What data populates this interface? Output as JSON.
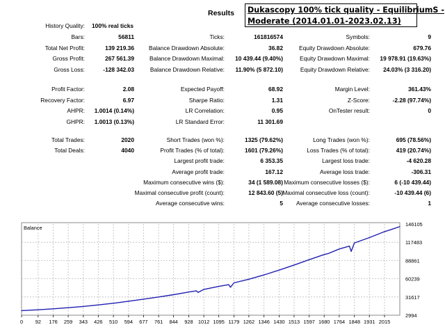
{
  "report": {
    "heading": "Results",
    "banner_line1": "Dukascopy 100% tick quality - EquilibriumS -",
    "banner_line2": "Moderate (2014.01.01-2023.02.13)"
  },
  "block1": [
    {
      "col1": {
        "label": "History Quality:",
        "value": "100% real ticks"
      }
    },
    {
      "col1": {
        "label": "Bars:",
        "value": "56811"
      },
      "col2": {
        "label": "Ticks:",
        "value": "161816574"
      },
      "col3": {
        "label": "Symbols:",
        "value": "9"
      }
    },
    {
      "col1": {
        "label": "Total Net Profit:",
        "value": "139 219.36"
      },
      "col2": {
        "label": "Balance Drawdown Absolute:",
        "value": "36.82"
      },
      "col3": {
        "label": "Equity Drawdown Absolute:",
        "value": "679.76"
      }
    },
    {
      "col1": {
        "label": "Gross Profit:",
        "value": "267 561.39"
      },
      "col2": {
        "label": "Balance Drawdown Maximal:",
        "value": "10 439.44 (9.40%)"
      },
      "col3": {
        "label": "Equity Drawdown Maximal:",
        "value": "19 978.91 (19.63%)"
      }
    },
    {
      "col1": {
        "label": "Gross Loss:",
        "value": "-128 342.03"
      },
      "col2": {
        "label": "Balance Drawdown Relative:",
        "value": "11.90% (5 872.10)"
      },
      "col3": {
        "label": "Equity Drawdown Relative:",
        "value": "24.03% (3 316.20)"
      }
    }
  ],
  "block2": [
    {
      "col1": {
        "label": "Profit Factor:",
        "value": "2.08"
      },
      "col2": {
        "label": "Expected Payoff:",
        "value": "68.92"
      },
      "col3": {
        "label": "Margin Level:",
        "value": "361.43%"
      }
    },
    {
      "col1": {
        "label": "Recovery Factor:",
        "value": "6.97"
      },
      "col2": {
        "label": "Sharpe Ratio:",
        "value": "1.31"
      },
      "col3": {
        "label": "Z-Score:",
        "value": "-2.28 (97.74%)"
      }
    },
    {
      "col1": {
        "label": "AHPR:",
        "value": "1.0014 (0.14%)"
      },
      "col2": {
        "label": "LR Correlation:",
        "value": "0.95"
      },
      "col3": {
        "label": "OnTester result:",
        "value": "0"
      }
    },
    {
      "col1": {
        "label": "GHPR:",
        "value": "1.0013 (0.13%)"
      },
      "col2": {
        "label": "LR Standard Error:",
        "value": "11 301.69"
      }
    }
  ],
  "block3": [
    {
      "col1": {
        "label": "Total Trades:",
        "value": "2020"
      },
      "col2": {
        "label": "Short Trades (won %):",
        "value": "1325 (79.62%)"
      },
      "col3": {
        "label": "Long Trades (won %):",
        "value": "695 (78.56%)"
      }
    },
    {
      "col1": {
        "label": "Total Deals:",
        "value": "4040"
      },
      "col2": {
        "label": "Profit Trades (% of total):",
        "value": "1601 (79.26%)"
      },
      "col3": {
        "label": "Loss Trades (% of total):",
        "value": "419 (20.74%)"
      }
    },
    {
      "col2": {
        "label": "Largest profit trade:",
        "value": "6 353.35"
      },
      "col3": {
        "label": "Largest loss trade:",
        "value": "-4 620.28"
      }
    },
    {
      "col2": {
        "label": "Average profit trade:",
        "value": "167.12"
      },
      "col3": {
        "label": "Average loss trade:",
        "value": "-306.31"
      }
    },
    {
      "col2": {
        "label": "Maximum consecutive wins ($):",
        "value": "34 (1 589.08)"
      },
      "col3": {
        "label": "Maximum consecutive losses ($):",
        "value": "6 (-10 439.44)"
      }
    },
    {
      "col2": {
        "label": "Maximal consecutive profit (count):",
        "value": "12 843.60 (5)"
      },
      "col3": {
        "label": "Maximal consecutive loss (count):",
        "value": "-10 439.44 (6)"
      }
    },
    {
      "col2": {
        "label": "Average consecutive wins:",
        "value": "5"
      },
      "col3": {
        "label": "Average consecutive losses:",
        "value": "1"
      }
    }
  ],
  "chart_data": {
    "type": "line",
    "title": "Balance",
    "xlabel": "",
    "ylabel": "",
    "x_ticks": [
      "0",
      "92",
      "176",
      "259",
      "343",
      "426",
      "510",
      "594",
      "677",
      "761",
      "844",
      "928",
      "1012",
      "1095",
      "1179",
      "1262",
      "1346",
      "1430",
      "1513",
      "1597",
      "1680",
      "1764",
      "1848",
      "1931",
      "2015"
    ],
    "y_ticks": [
      "146105",
      "117483",
      "88861",
      "60239",
      "31617",
      "2994"
    ],
    "xlim": [
      0,
      2100
    ],
    "ylim": [
      2994,
      146105
    ],
    "grid": true,
    "colors": {
      "line": "#1f1fb0",
      "grid": "#b9b9b9",
      "axis": "#000000",
      "frame": "#8a8a8a"
    },
    "series": [
      {
        "x": [
          0,
          92,
          176,
          259,
          343,
          426,
          510,
          594,
          677,
          761,
          844,
          928,
          970,
          980,
          1012,
          1095,
          1150,
          1160,
          1179,
          1262,
          1346,
          1430,
          1513,
          1597,
          1680,
          1700,
          1764,
          1820,
          1830,
          1848,
          1931,
          2015,
          2075,
          2100
        ],
        "y": [
          10200,
          11500,
          13000,
          14800,
          16800,
          19200,
          21800,
          25000,
          28200,
          31600,
          35200,
          39400,
          41300,
          38800,
          43500,
          48200,
          51000,
          46900,
          53800,
          59500,
          66200,
          73800,
          81800,
          90200,
          98300,
          99600,
          107000,
          111500,
          103200,
          116500,
          124800,
          134200,
          139700,
          142200
        ]
      }
    ]
  }
}
